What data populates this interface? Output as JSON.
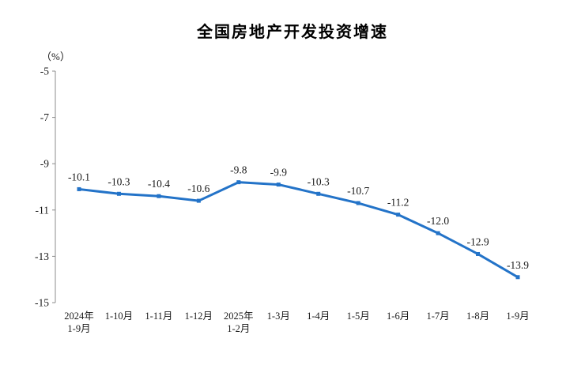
{
  "chart_data": {
    "type": "line",
    "title": "全国房地产开发投资增速",
    "ylabel": "（%）",
    "categories": [
      "2024年\n1-9月",
      "1-10月",
      "1-11月",
      "1-12月",
      "2025年\n1-2月",
      "1-3月",
      "1-4月",
      "1-5月",
      "1-6月",
      "1-7月",
      "1-8月",
      "1-9月"
    ],
    "values": [
      -10.1,
      -10.3,
      -10.4,
      -10.6,
      -9.8,
      -9.9,
      -10.3,
      -10.7,
      -11.2,
      -12.0,
      -12.9,
      -13.9
    ],
    "value_labels": [
      "-10.1",
      "-10.3",
      "-10.4",
      "-10.6",
      "-9.8",
      "-9.9",
      "-10.3",
      "-10.7",
      "-11.2",
      "-12.0",
      "-12.9",
      "-13.9"
    ],
    "ylim": [
      -15,
      -5
    ],
    "yticks": [
      -5,
      -7,
      -9,
      -11,
      -13,
      -15
    ],
    "grid": false,
    "legend_position": "none",
    "colors": {
      "line": "#2373c8",
      "labels": "#1a1a1a",
      "axis": "#8c8c8c",
      "title": "#000000",
      "background": "#ffffff"
    }
  }
}
